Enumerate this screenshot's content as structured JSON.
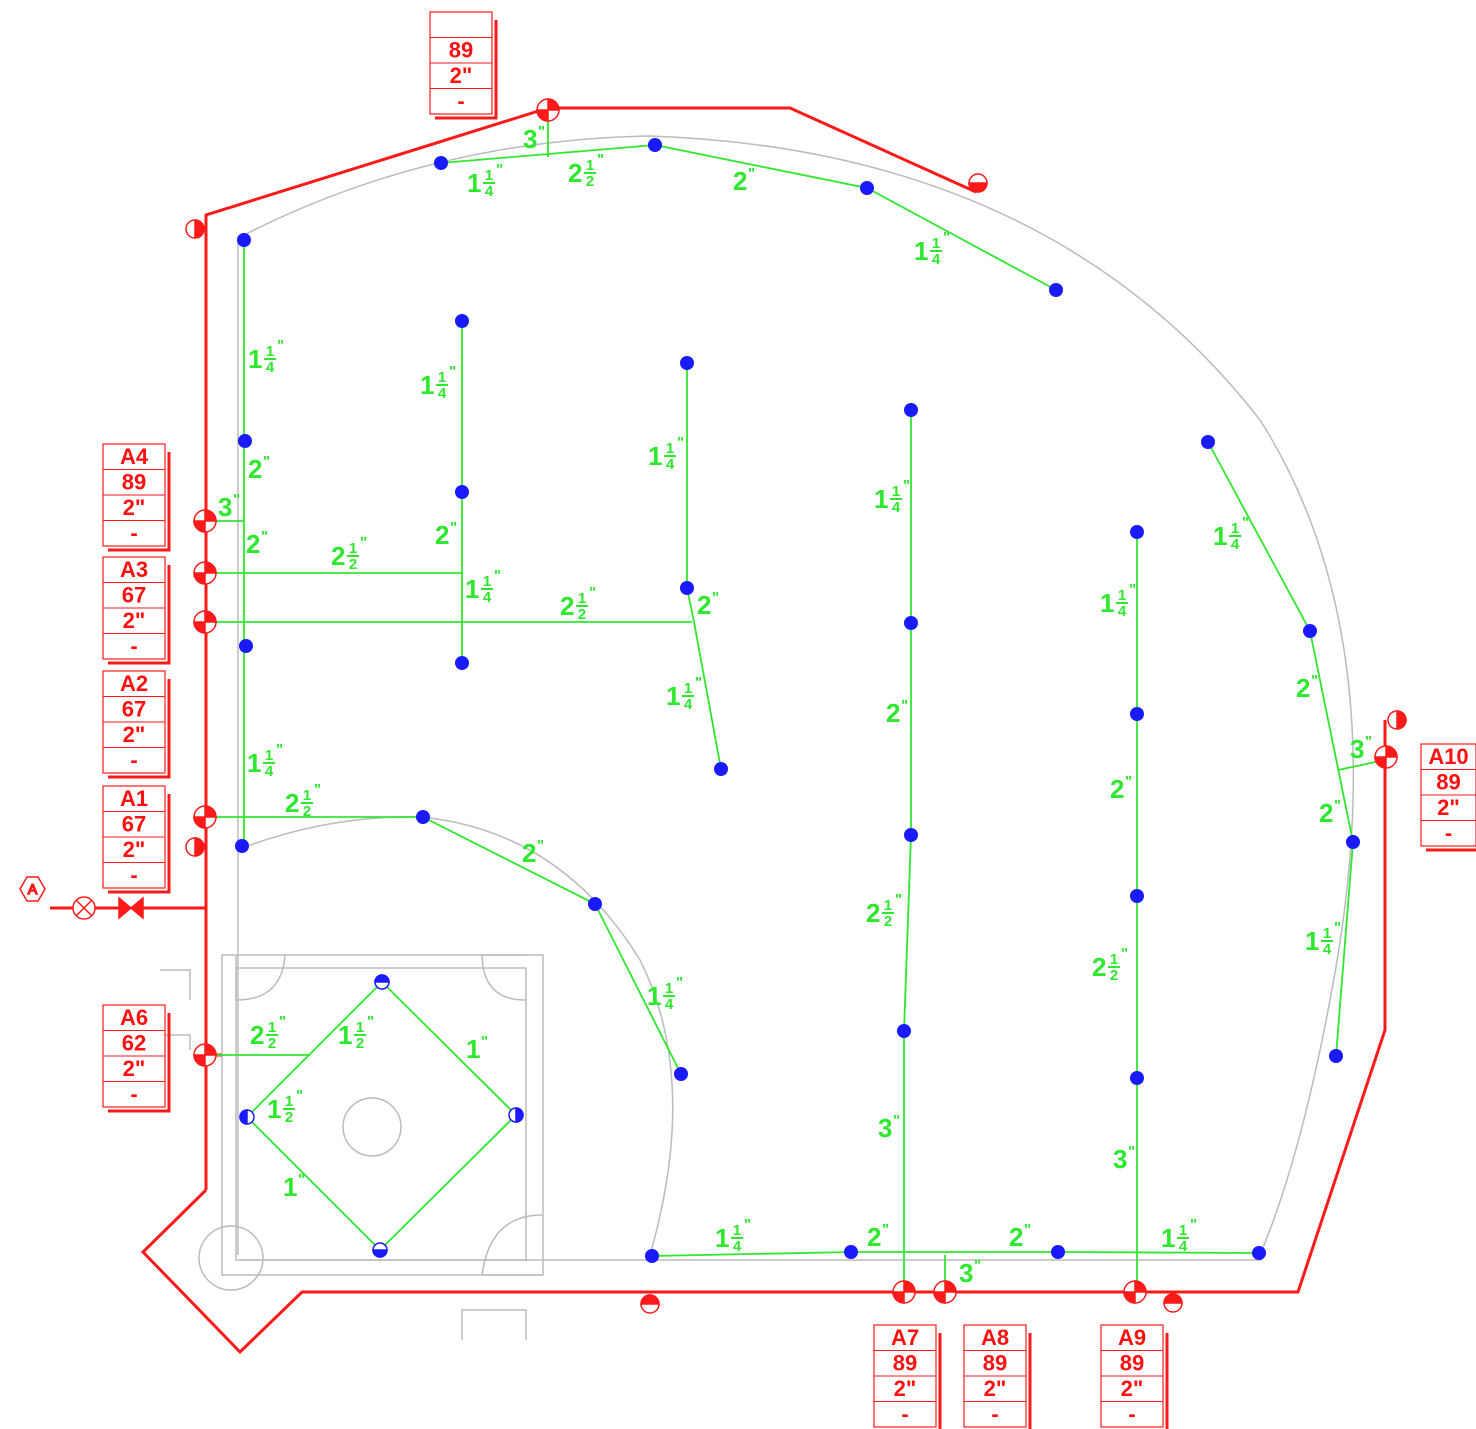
{
  "colors": {
    "mainline": "#ff1a1a",
    "lateral": "#2ee82e",
    "head": "#1a1aff",
    "field": "#bbbbbb"
  },
  "marker": "A",
  "valve_tags": [
    {
      "id": "tag-top",
      "lines": [
        "",
        "89",
        "2\"",
        "-"
      ]
    },
    {
      "id": "A4",
      "lines": [
        "A4",
        "89",
        "2\"",
        "-"
      ]
    },
    {
      "id": "A3",
      "lines": [
        "A3",
        "67",
        "2\"",
        "-"
      ]
    },
    {
      "id": "A2",
      "lines": [
        "A2",
        "67",
        "2\"",
        "-"
      ]
    },
    {
      "id": "A1",
      "lines": [
        "A1",
        "67",
        "2\"",
        "-"
      ]
    },
    {
      "id": "A6",
      "lines": [
        "A6",
        "62",
        "2\"",
        "-"
      ]
    },
    {
      "id": "A7",
      "lines": [
        "A7",
        "89",
        "2\"",
        "-"
      ]
    },
    {
      "id": "A8",
      "lines": [
        "A8",
        "89",
        "2\"",
        "-"
      ]
    },
    {
      "id": "A9",
      "lines": [
        "A9",
        "89",
        "2\"",
        "-"
      ]
    },
    {
      "id": "A10",
      "lines": [
        "A10",
        "89",
        "2\"",
        "-"
      ]
    }
  ],
  "pipe_labels": {
    "three": "3",
    "two": "2",
    "one": "1",
    "inch": "\"",
    "quarter_num": "1",
    "quarter_den": "4",
    "half_num": "1",
    "half_den": "2"
  }
}
